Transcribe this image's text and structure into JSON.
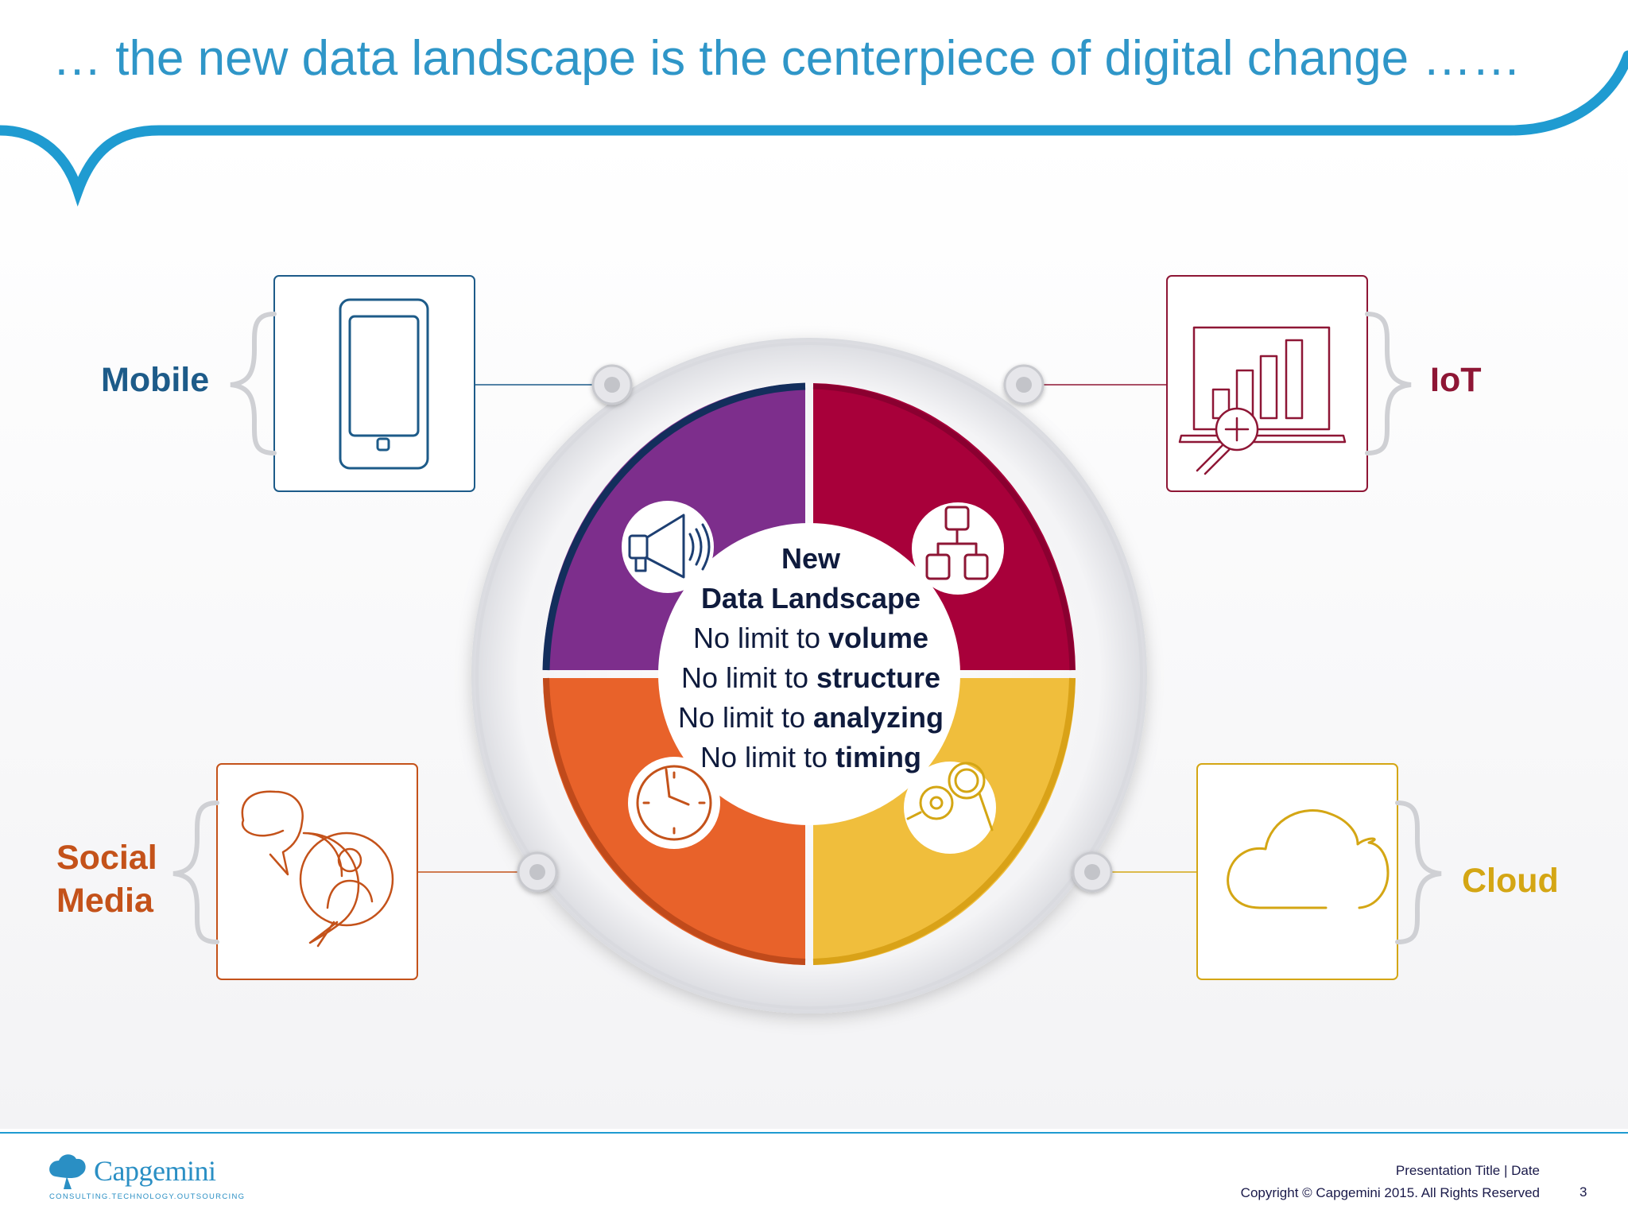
{
  "title": "… the new data landscape is the centerpiece of digital change ……",
  "colors": {
    "brand_blue": "#2f96c8",
    "mobile": "#1d5b89",
    "iot": "#8e1635",
    "social": "#c4521a",
    "cloud": "#d4a614",
    "ring_purple": "#7d2e8c",
    "ring_crimson": "#a8003a",
    "ring_orange": "#e8622a",
    "ring_yellow": "#f0be3c",
    "center_text": "#0f1b3d"
  },
  "categories": {
    "mobile": {
      "label": "Mobile",
      "icon": "smartphone-icon"
    },
    "iot": {
      "label": "IoT",
      "icon": "bar-chart-magnifier-icon"
    },
    "social": {
      "label_line1": "Social",
      "label_line2": "Media",
      "icon": "chat-bubbles-person-icon"
    },
    "cloud": {
      "label": "Cloud",
      "icon": "cloud-icon"
    }
  },
  "center": {
    "heading_line1": "New",
    "heading_line2": "Data Landscape",
    "lines": [
      {
        "prefix": "No limit to ",
        "bold": "volume"
      },
      {
        "prefix": "No limit to ",
        "bold": "structure"
      },
      {
        "prefix": "No limit to ",
        "bold": "analyzing"
      },
      {
        "prefix": "No limit to ",
        "bold": "timing"
      }
    ]
  },
  "ring_icons": [
    "megaphone-icon",
    "hierarchy-icon",
    "clock-icon",
    "key-search-icon"
  ],
  "footer": {
    "presentation": "Presentation Title | Date",
    "copyright": "Copyright © Capgemini 2015. All Rights Reserved",
    "page_number": "3"
  },
  "logo": {
    "name": "Capgemini",
    "tagline": "CONSULTING.TECHNOLOGY.OUTSOURCING"
  }
}
